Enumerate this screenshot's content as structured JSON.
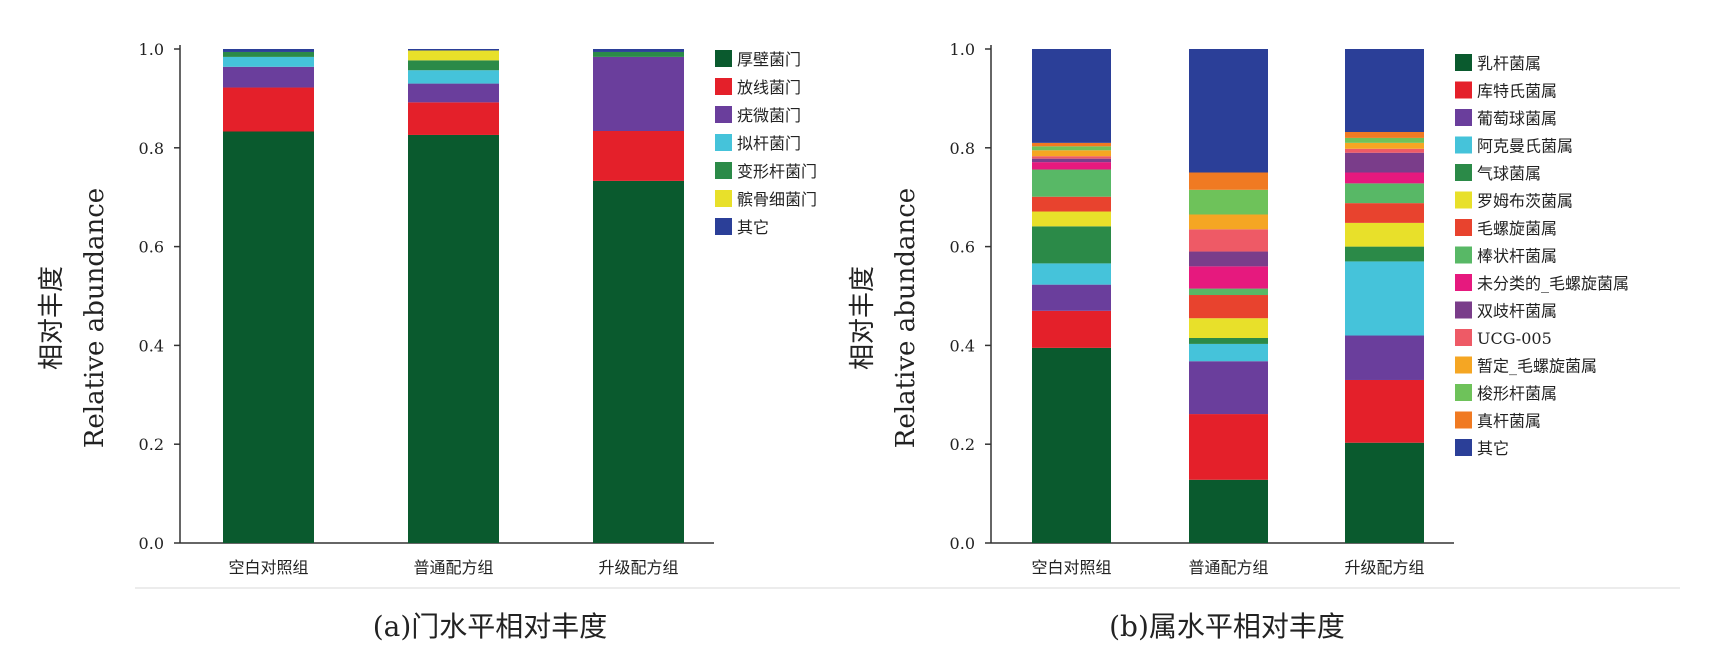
{
  "chart_data": [
    {
      "type": "bar",
      "stacked": true,
      "caption": "(a)门水平相对丰度",
      "ylabel_cn": "相对丰度",
      "ylabel_en": "Relative abundance",
      "ylim": [
        0,
        1.0
      ],
      "yticks": [
        "0.0",
        "0.2",
        "0.4",
        "0.6",
        "0.8",
        "1.0"
      ],
      "categories": [
        "空白对照组",
        "普通配方组",
        "升级配方组"
      ],
      "legend_position": "right",
      "series": [
        {
          "name": "厚壁菌门",
          "color": "#0a5a2e",
          "values": [
            0.833,
            0.826,
            0.733
          ]
        },
        {
          "name": "放线菌门",
          "color": "#e4202a",
          "values": [
            0.089,
            0.066,
            0.101
          ]
        },
        {
          "name": "疣微菌门",
          "color": "#6a3e9c",
          "values": [
            0.042,
            0.038,
            0.15
          ]
        },
        {
          "name": "拟杆菌门",
          "color": "#45c3da",
          "values": [
            0.02,
            0.027,
            0.0
          ]
        },
        {
          "name": "变形杆菌门",
          "color": "#2b8a48",
          "values": [
            0.01,
            0.02,
            0.01
          ]
        },
        {
          "name": "髌骨细菌门",
          "color": "#e8e02a",
          "values": [
            0.0,
            0.02,
            0.0
          ]
        },
        {
          "name": "其它",
          "color": "#2b3f98",
          "values": [
            0.006,
            0.003,
            0.006
          ]
        }
      ]
    },
    {
      "type": "bar",
      "stacked": true,
      "caption": "(b)属水平相对丰度",
      "ylabel_cn": "相对丰度",
      "ylabel_en": "Relative abundance",
      "ylim": [
        0,
        1.0
      ],
      "yticks": [
        "0.0",
        "0.2",
        "0.4",
        "0.6",
        "0.8",
        "1.0"
      ],
      "categories": [
        "空白对照组",
        "普通配方组",
        "升级配方组"
      ],
      "legend_position": "right",
      "series": [
        {
          "name": "乳杆菌属",
          "color": "#0a5a2e",
          "values": [
            0.395,
            0.128,
            0.203
          ]
        },
        {
          "name": "库特氏菌属",
          "color": "#e4202a",
          "values": [
            0.075,
            0.133,
            0.127
          ]
        },
        {
          "name": "葡萄球菌属",
          "color": "#6a3e9c",
          "values": [
            0.053,
            0.107,
            0.09
          ]
        },
        {
          "name": "阿克曼氏菌属",
          "color": "#45c3da",
          "values": [
            0.043,
            0.035,
            0.15
          ]
        },
        {
          "name": "气球菌属",
          "color": "#2b8a48",
          "values": [
            0.075,
            0.012,
            0.03
          ]
        },
        {
          "name": "罗姆布茨菌属",
          "color": "#e8e02a",
          "values": [
            0.03,
            0.04,
            0.048
          ]
        },
        {
          "name": "毛螺旋菌属",
          "color": "#e8432e",
          "values": [
            0.03,
            0.047,
            0.04
          ]
        },
        {
          "name": "棒状杆菌属",
          "color": "#58b866",
          "values": [
            0.055,
            0.013,
            0.04
          ]
        },
        {
          "name": "未分类的_毛螺旋菌属",
          "color": "#e6197e",
          "values": [
            0.015,
            0.045,
            0.022
          ]
        },
        {
          "name": "双歧杆菌属",
          "color": "#7a3d8a",
          "values": [
            0.007,
            0.03,
            0.04
          ]
        },
        {
          "name": "UCG-005",
          "color": "#ee5a66",
          "values": [
            0.005,
            0.045,
            0.008
          ]
        },
        {
          "name": "暂定_毛螺旋菌属",
          "color": "#f5a623",
          "values": [
            0.012,
            0.03,
            0.012
          ]
        },
        {
          "name": "梭形杆菌属",
          "color": "#6ec25a",
          "values": [
            0.008,
            0.05,
            0.01
          ]
        },
        {
          "name": "真杆菌属",
          "color": "#f07a22",
          "values": [
            0.007,
            0.035,
            0.012
          ]
        },
        {
          "name": "其它",
          "color": "#2b3f98",
          "values": [
            0.19,
            0.25,
            0.168
          ]
        }
      ]
    }
  ]
}
